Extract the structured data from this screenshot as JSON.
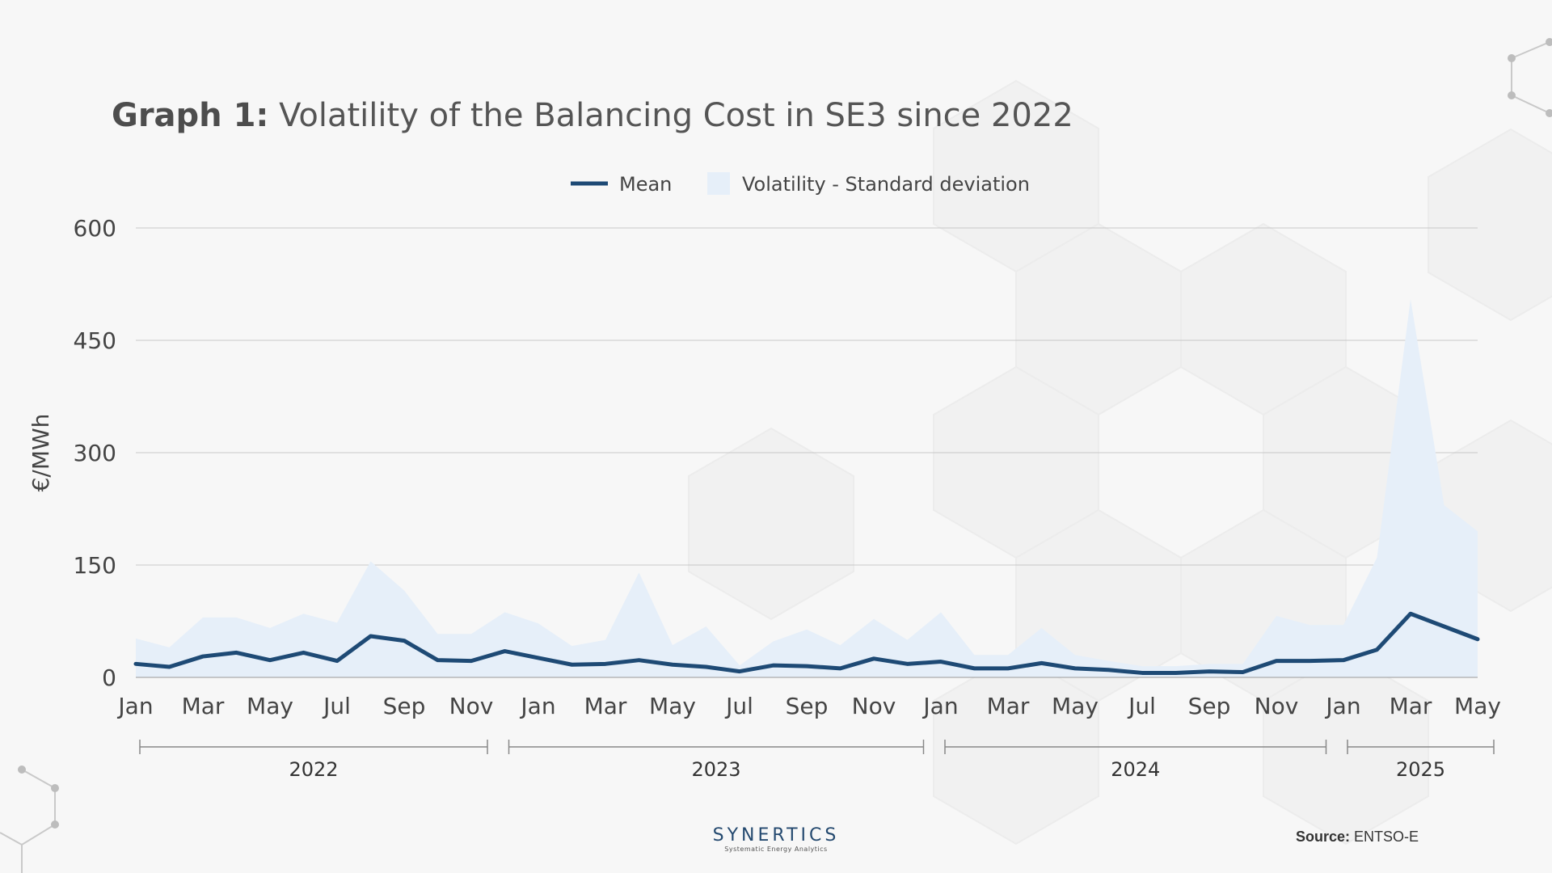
{
  "title": {
    "bold": "Graph 1:",
    "rest": "Volatility of the Balancing Cost in SE3 since 2022"
  },
  "source": {
    "label": "Source:",
    "value": "ENTSO-E"
  },
  "logo": {
    "name": "SYNERTICS",
    "tagline": "Systematic Energy Analytics"
  },
  "colors": {
    "mean_line": "#1e4a75",
    "volatility_fill": "#e6eff9",
    "grid": "#c8c8c8",
    "text": "#444444"
  },
  "chart_data": {
    "type": "area",
    "title": "Graph 1: Volatility of the Balancing Cost in SE3 since 2022",
    "ylabel": "€/MWh",
    "xlabel": "",
    "ylim": [
      0,
      600
    ],
    "yticks": [
      "0",
      "150",
      "300",
      "450",
      "600"
    ],
    "grid": true,
    "legend_position": "top-center",
    "x": [
      "2022-01",
      "2022-02",
      "2022-03",
      "2022-04",
      "2022-05",
      "2022-06",
      "2022-07",
      "2022-08",
      "2022-09",
      "2022-10",
      "2022-11",
      "2022-12",
      "2023-01",
      "2023-02",
      "2023-03",
      "2023-04",
      "2023-05",
      "2023-06",
      "2023-07",
      "2023-08",
      "2023-09",
      "2023-10",
      "2023-11",
      "2023-12",
      "2024-01",
      "2024-02",
      "2024-03",
      "2024-04",
      "2024-05",
      "2024-06",
      "2024-07",
      "2024-08",
      "2024-09",
      "2024-10",
      "2024-11",
      "2024-12",
      "2025-01",
      "2025-02",
      "2025-03",
      "2025-04",
      "2025-05"
    ],
    "x_tick_labels": [
      "Jan",
      "Mar",
      "May",
      "Jul",
      "Sep",
      "Nov",
      "Jan",
      "Mar",
      "May",
      "Jul",
      "Sep",
      "Nov",
      "Jan",
      "Mar",
      "May",
      "Jul",
      "Sep",
      "Nov",
      "Jan",
      "Mar",
      "May"
    ],
    "x_tick_index": [
      0,
      2,
      4,
      6,
      8,
      10,
      12,
      14,
      16,
      18,
      20,
      22,
      24,
      26,
      28,
      30,
      32,
      34,
      36,
      38,
      40
    ],
    "year_groups": [
      {
        "label": "2022",
        "start": 0,
        "end": 10
      },
      {
        "label": "2023",
        "start": 11,
        "end": 23
      },
      {
        "label": "2024",
        "start": 24,
        "end": 35
      },
      {
        "label": "2025",
        "start": 36,
        "end": 40
      }
    ],
    "series": [
      {
        "name": "Mean",
        "type": "line",
        "values": [
          18,
          14,
          28,
          33,
          23,
          33,
          22,
          55,
          49,
          23,
          22,
          35,
          26,
          17,
          18,
          23,
          17,
          14,
          8,
          16,
          15,
          12,
          25,
          18,
          21,
          12,
          12,
          19,
          12,
          10,
          6,
          6,
          8,
          7,
          22,
          22,
          23,
          37,
          85,
          68,
          51
        ]
      },
      {
        "name": "Volatility - Standard deviation",
        "type": "area",
        "values": [
          52,
          40,
          80,
          80,
          66,
          85,
          73,
          155,
          116,
          58,
          58,
          87,
          72,
          42,
          50,
          140,
          43,
          68,
          16,
          48,
          64,
          43,
          78,
          50,
          87,
          30,
          30,
          66,
          30,
          22,
          15,
          15,
          18,
          18,
          82,
          70,
          70,
          160,
          505,
          230,
          195
        ]
      }
    ]
  }
}
